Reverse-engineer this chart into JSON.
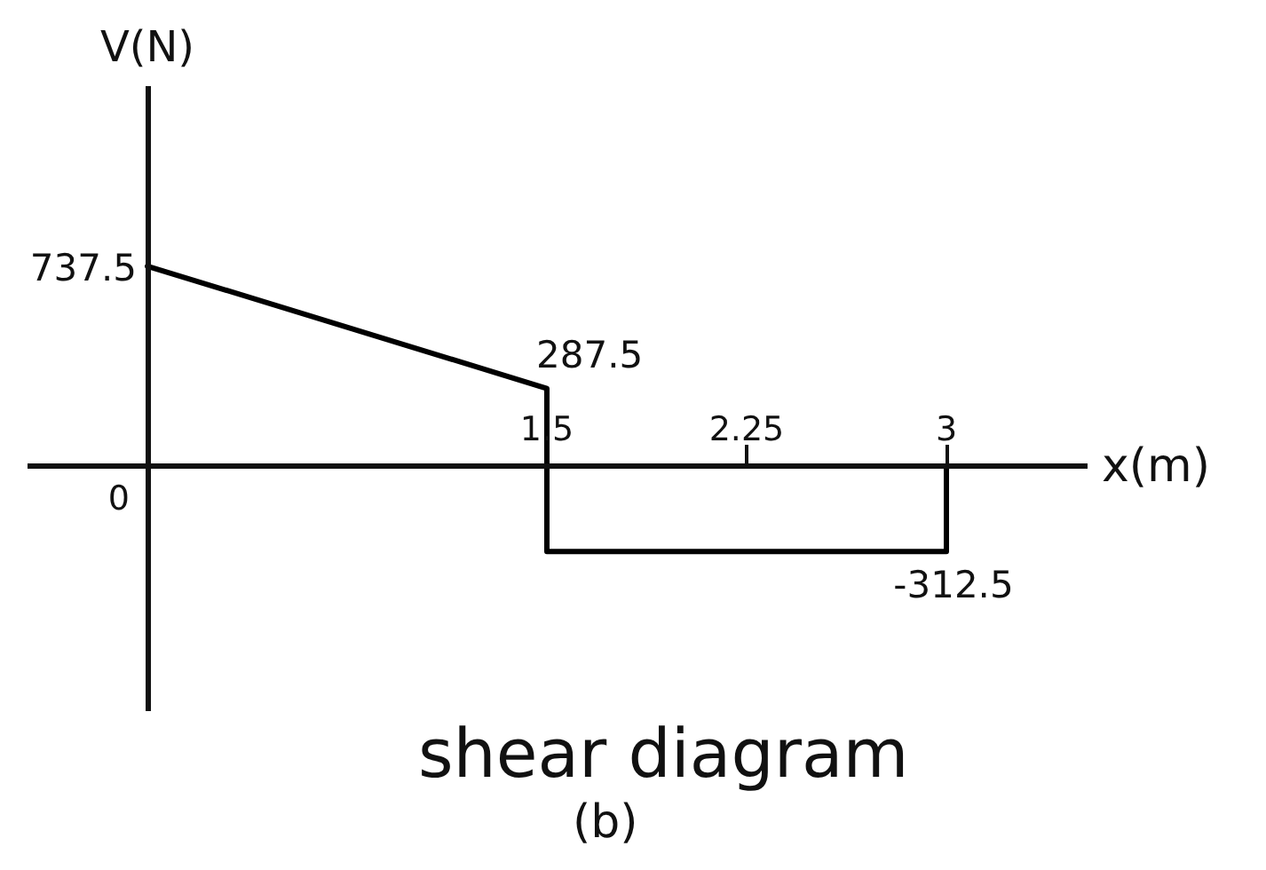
{
  "chart_data": {
    "type": "line",
    "title": "shear diagram",
    "subtitle": "(b)",
    "xlabel": "x(m)",
    "ylabel": "V(N)",
    "x": [
      0,
      1.5,
      1.5,
      3,
      3
    ],
    "values": [
      737.5,
      287.5,
      -312.5,
      -312.5,
      0
    ],
    "color": "#000000",
    "value_labels": [
      "737.5",
      "287.5",
      null,
      "-312.5",
      null
    ],
    "annotations": [
      "0"
    ],
    "xlim": [
      -0.45,
      3.53
    ],
    "xticks": [
      1.5,
      2.25,
      3
    ],
    "ylim": [
      -900,
      1400
    ],
    "tick_labels": "x"
  }
}
